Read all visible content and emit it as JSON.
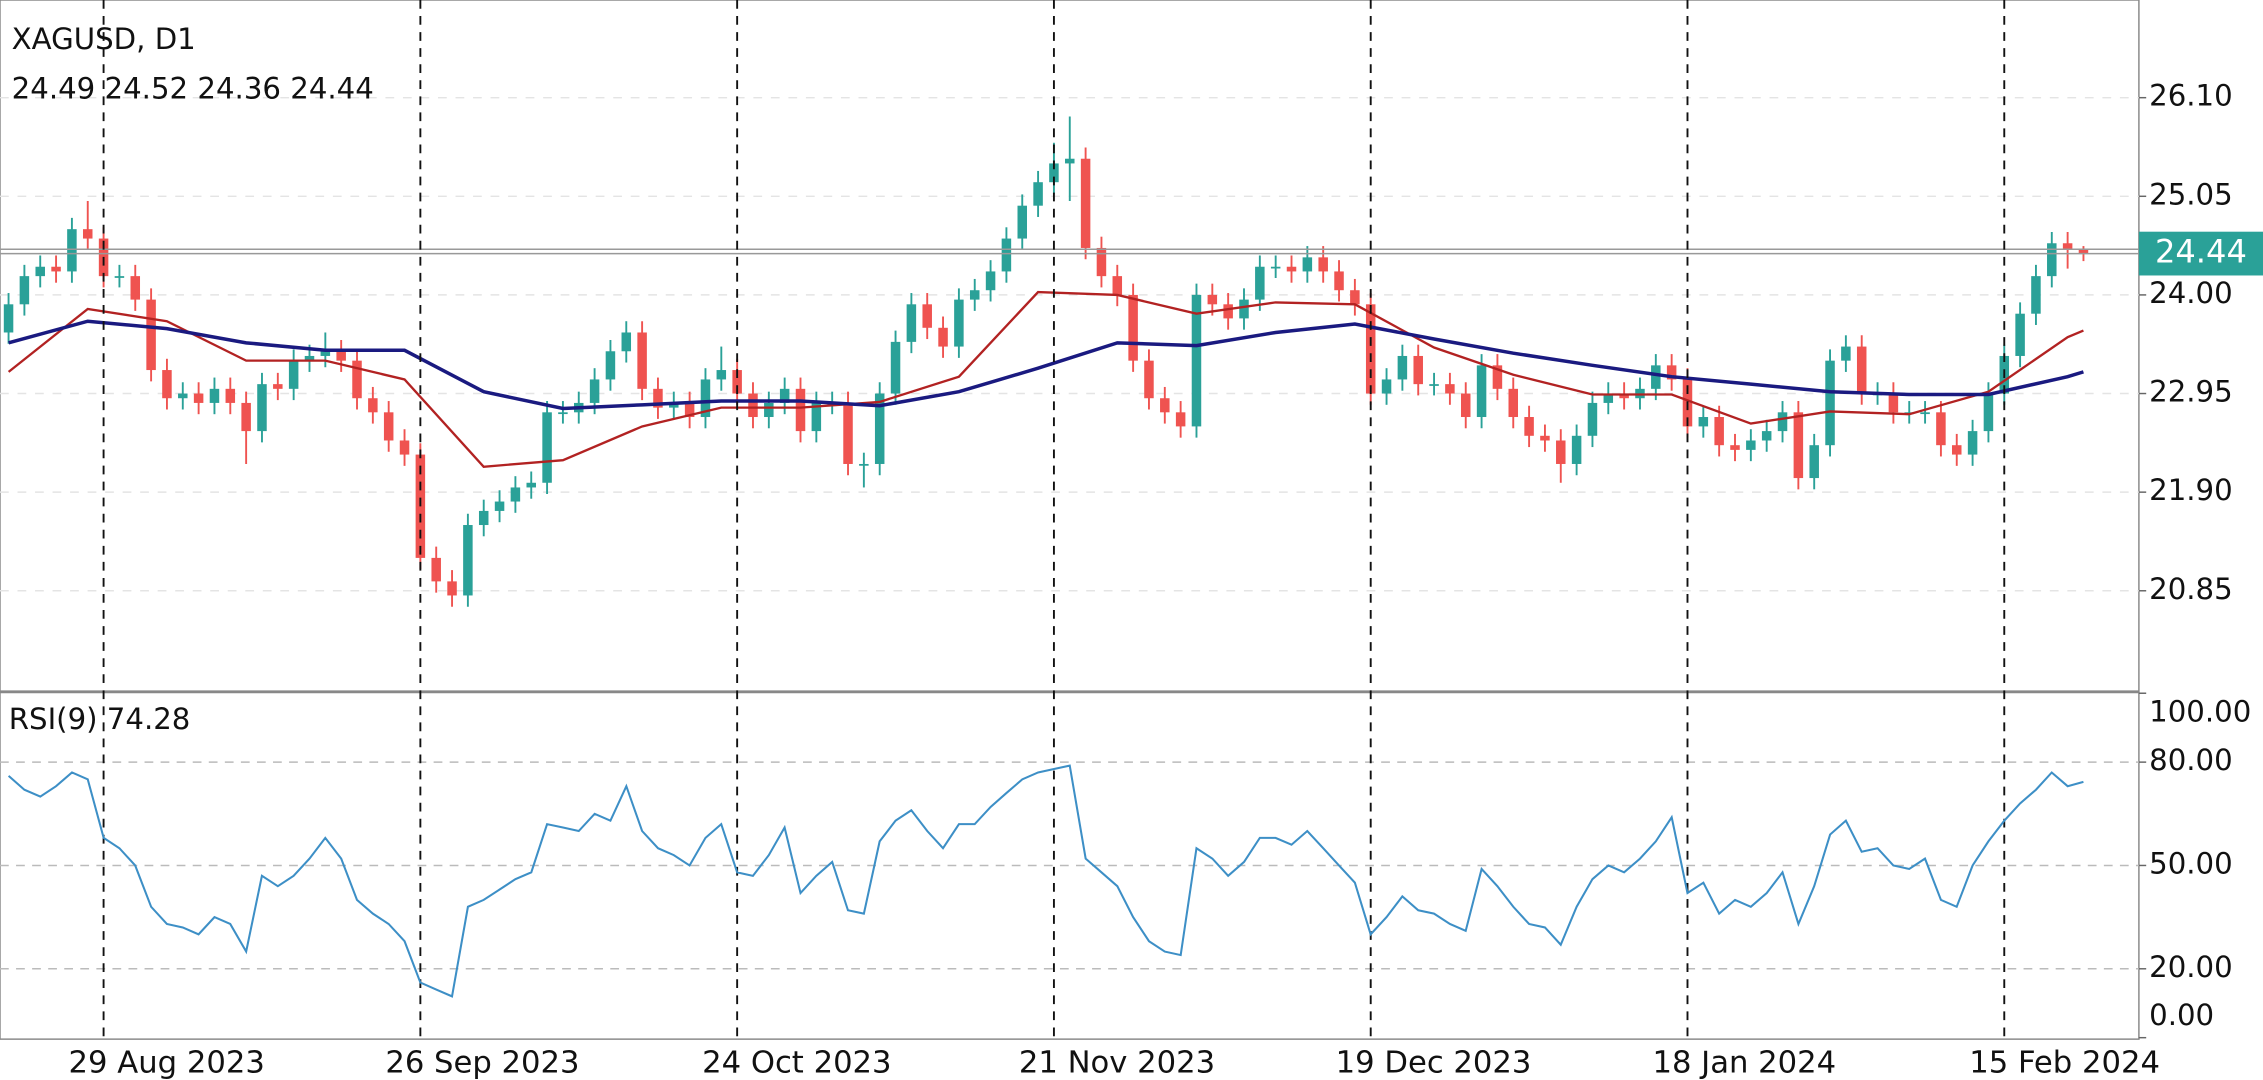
{
  "chart_data": [
    {
      "type": "candlestick",
      "title": "XAGUSD, D1",
      "up_color": "#2aa198",
      "down_color": "#ef5350",
      "xlim": [
        -0.54,
        134.5
      ],
      "ylim": [
        19.79,
        27.14
      ],
      "yticks": [
        20.85,
        {
          "value": 21.9,
          "label": "21.90"
        },
        22.95,
        {
          "value": 24,
          "label": "24.00"
        },
        25.05,
        {
          "value": 26.1,
          "label": "26.10"
        }
      ],
      "grid": true,
      "ohlc": [
        [
          23.6,
          24.02,
          23.48,
          23.9
        ],
        [
          23.9,
          24.32,
          23.78,
          24.2
        ],
        [
          24.2,
          24.42,
          24.08,
          24.3
        ],
        [
          24.3,
          24.42,
          24.13,
          24.25
        ],
        [
          24.25,
          24.82,
          24.13,
          24.7
        ],
        [
          24.7,
          25.0,
          24.48,
          24.6
        ],
        [
          24.6,
          24.72,
          24.08,
          24.2
        ],
        [
          24.2,
          24.32,
          24.08,
          24.2
        ],
        [
          24.2,
          24.32,
          23.83,
          23.95
        ],
        [
          23.95,
          24.07,
          23.08,
          23.2
        ],
        [
          23.2,
          23.32,
          22.78,
          22.9
        ],
        [
          22.9,
          23.07,
          22.78,
          22.95
        ],
        [
          22.95,
          23.07,
          22.73,
          22.85
        ],
        [
          22.85,
          23.12,
          22.73,
          23.0
        ],
        [
          23.0,
          23.12,
          22.73,
          22.85
        ],
        [
          22.85,
          22.97,
          22.2,
          22.55
        ],
        [
          22.55,
          23.17,
          22.43,
          23.05
        ],
        [
          23.05,
          23.17,
          22.88,
          23.0
        ],
        [
          23.0,
          23.42,
          22.88,
          23.3
        ],
        [
          23.3,
          23.47,
          23.18,
          23.35
        ],
        [
          23.35,
          23.6,
          23.23,
          23.4
        ],
        [
          23.4,
          23.52,
          23.18,
          23.3
        ],
        [
          23.3,
          23.42,
          22.78,
          22.9
        ],
        [
          22.9,
          23.02,
          22.63,
          22.75
        ],
        [
          22.75,
          22.87,
          22.33,
          22.45
        ],
        [
          22.45,
          22.57,
          22.18,
          22.3
        ],
        [
          22.3,
          22.42,
          21.08,
          21.2
        ],
        [
          21.2,
          21.32,
          20.83,
          20.95
        ],
        [
          20.95,
          21.07,
          20.68,
          20.8
        ],
        [
          20.8,
          21.67,
          20.68,
          21.55
        ],
        [
          21.55,
          21.82,
          21.43,
          21.7
        ],
        [
          21.7,
          21.92,
          21.58,
          21.8
        ],
        [
          21.8,
          22.07,
          21.68,
          21.95
        ],
        [
          21.95,
          22.12,
          21.83,
          22.0
        ],
        [
          22.0,
          22.87,
          21.88,
          22.75
        ],
        [
          22.75,
          22.87,
          22.63,
          22.75
        ],
        [
          22.75,
          22.97,
          22.63,
          22.85
        ],
        [
          22.85,
          23.22,
          22.73,
          23.1
        ],
        [
          23.1,
          23.52,
          22.98,
          23.4
        ],
        [
          23.4,
          23.72,
          23.28,
          23.6
        ],
        [
          23.6,
          23.72,
          22.88,
          23.0
        ],
        [
          23.0,
          23.12,
          22.68,
          22.8
        ],
        [
          22.8,
          22.97,
          22.68,
          22.85
        ],
        [
          22.85,
          22.97,
          22.58,
          22.7
        ],
        [
          22.7,
          23.22,
          22.58,
          23.1
        ],
        [
          23.1,
          23.45,
          22.98,
          23.2
        ],
        [
          23.2,
          23.32,
          22.83,
          22.95
        ],
        [
          22.95,
          23.07,
          22.58,
          22.7
        ],
        [
          22.7,
          22.97,
          22.58,
          22.85
        ],
        [
          22.85,
          23.12,
          22.73,
          23.0
        ],
        [
          23.0,
          23.12,
          22.43,
          22.55
        ],
        [
          22.55,
          22.97,
          22.43,
          22.85
        ],
        [
          22.85,
          22.97,
          22.73,
          22.85
        ],
        [
          22.85,
          22.97,
          22.08,
          22.2
        ],
        [
          22.2,
          22.32,
          21.95,
          22.2
        ],
        [
          22.2,
          23.07,
          22.08,
          22.95
        ],
        [
          22.95,
          23.62,
          22.83,
          23.5
        ],
        [
          23.5,
          24.02,
          23.38,
          23.9
        ],
        [
          23.9,
          24.02,
          23.53,
          23.65
        ],
        [
          23.65,
          23.77,
          23.33,
          23.45
        ],
        [
          23.45,
          24.07,
          23.33,
          23.95
        ],
        [
          23.95,
          24.17,
          23.83,
          24.05
        ],
        [
          24.05,
          24.37,
          23.93,
          24.25
        ],
        [
          24.25,
          24.72,
          24.13,
          24.6
        ],
        [
          24.6,
          25.07,
          24.48,
          24.95
        ],
        [
          24.95,
          25.32,
          24.83,
          25.2
        ],
        [
          25.2,
          25.62,
          25.08,
          25.4
        ],
        [
          25.4,
          25.9,
          25.0,
          25.45
        ],
        [
          25.45,
          25.57,
          24.38,
          24.5
        ],
        [
          24.5,
          24.62,
          24.08,
          24.2
        ],
        [
          24.2,
          24.32,
          23.88,
          24.0
        ],
        [
          24.0,
          24.12,
          23.18,
          23.3
        ],
        [
          23.3,
          23.42,
          22.78,
          22.9
        ],
        [
          22.9,
          23.02,
          22.63,
          22.75
        ],
        [
          22.75,
          22.87,
          22.48,
          22.6
        ],
        [
          22.6,
          24.12,
          22.48,
          24.0
        ],
        [
          24.0,
          24.12,
          23.78,
          23.9
        ],
        [
          23.9,
          24.02,
          23.63,
          23.75
        ],
        [
          23.75,
          24.07,
          23.63,
          23.95
        ],
        [
          23.95,
          24.42,
          23.83,
          24.3
        ],
        [
          24.3,
          24.42,
          24.18,
          24.3
        ],
        [
          24.3,
          24.42,
          24.13,
          24.25
        ],
        [
          24.25,
          24.52,
          24.13,
          24.4
        ],
        [
          24.4,
          24.52,
          24.13,
          24.25
        ],
        [
          24.25,
          24.37,
          23.93,
          24.05
        ],
        [
          24.05,
          24.17,
          23.78,
          23.9
        ],
        [
          23.9,
          24.02,
          22.83,
          22.95
        ],
        [
          22.95,
          23.22,
          22.83,
          23.1
        ],
        [
          23.1,
          23.47,
          22.98,
          23.35
        ],
        [
          23.35,
          23.47,
          22.93,
          23.05
        ],
        [
          23.05,
          23.17,
          22.93,
          23.05
        ],
        [
          23.05,
          23.17,
          22.83,
          22.95
        ],
        [
          22.95,
          23.07,
          22.58,
          22.7
        ],
        [
          22.7,
          23.37,
          22.58,
          23.25
        ],
        [
          23.25,
          23.37,
          22.88,
          23.0
        ],
        [
          23.0,
          23.12,
          22.58,
          22.7
        ],
        [
          22.7,
          22.82,
          22.38,
          22.5
        ],
        [
          22.5,
          22.62,
          22.33,
          22.45
        ],
        [
          22.45,
          22.57,
          22.0,
          22.2
        ],
        [
          22.2,
          22.62,
          22.08,
          22.5
        ],
        [
          22.5,
          22.97,
          22.38,
          22.85
        ],
        [
          22.85,
          23.07,
          22.73,
          22.95
        ],
        [
          22.95,
          23.07,
          22.78,
          22.9
        ],
        [
          22.9,
          23.12,
          22.78,
          23.0
        ],
        [
          23.0,
          23.37,
          22.88,
          23.25
        ],
        [
          23.25,
          23.37,
          22.98,
          23.1
        ],
        [
          23.1,
          23.22,
          22.48,
          22.6
        ],
        [
          22.6,
          22.82,
          22.48,
          22.7
        ],
        [
          22.7,
          22.82,
          22.28,
          22.4
        ],
        [
          22.4,
          22.52,
          22.23,
          22.35
        ],
        [
          22.35,
          22.57,
          22.23,
          22.45
        ],
        [
          22.45,
          22.67,
          22.33,
          22.55
        ],
        [
          22.55,
          22.87,
          22.43,
          22.75
        ],
        [
          22.75,
          22.87,
          21.93,
          22.05
        ],
        [
          22.05,
          22.52,
          21.93,
          22.4
        ],
        [
          22.4,
          23.42,
          22.28,
          23.3
        ],
        [
          23.3,
          23.57,
          23.18,
          23.45
        ],
        [
          23.45,
          23.57,
          22.83,
          22.95
        ],
        [
          22.95,
          23.07,
          22.83,
          22.95
        ],
        [
          22.95,
          23.07,
          22.63,
          22.75
        ],
        [
          22.75,
          22.87,
          22.63,
          22.75
        ],
        [
          22.75,
          22.87,
          22.63,
          22.75
        ],
        [
          22.75,
          22.87,
          22.28,
          22.4
        ],
        [
          22.4,
          22.52,
          22.18,
          22.3
        ],
        [
          22.3,
          22.67,
          22.18,
          22.55
        ],
        [
          22.55,
          23.07,
          22.43,
          22.95
        ],
        [
          22.95,
          23.47,
          22.83,
          23.35
        ],
        [
          23.35,
          23.92,
          23.23,
          23.8
        ],
        [
          23.8,
          24.32,
          23.68,
          24.2
        ],
        [
          24.2,
          24.67,
          24.08,
          24.55
        ],
        [
          24.55,
          24.67,
          24.28,
          24.49
        ],
        [
          24.49,
          24.52,
          24.36,
          24.44
        ]
      ],
      "series": [
        {
          "color": "#b22222",
          "x": [
            0,
            5,
            10,
            15,
            20,
            25,
            30,
            35,
            40,
            45,
            50,
            55,
            60,
            65,
            70,
            75,
            80,
            85,
            90,
            95,
            100,
            105,
            110,
            115,
            120,
            125,
            130,
            131
          ],
          "values": [
            23.18,
            23.85,
            23.72,
            23.3,
            23.3,
            23.1,
            22.17,
            22.24,
            22.6,
            22.8,
            22.8,
            22.86,
            23.13,
            24.03,
            24.0,
            23.8,
            23.92,
            23.9,
            23.44,
            23.15,
            22.94,
            22.94,
            22.63,
            22.76,
            22.73,
            22.97,
            23.55,
            23.62
          ]
        },
        {
          "color": "#1a1a80",
          "x": [
            0,
            5,
            10,
            15,
            20,
            25,
            30,
            35,
            40,
            45,
            50,
            55,
            60,
            65,
            70,
            75,
            80,
            85,
            90,
            95,
            100,
            105,
            110,
            115,
            120,
            125,
            130,
            131
          ],
          "values": [
            23.49,
            23.72,
            23.64,
            23.49,
            23.41,
            23.41,
            22.97,
            22.79,
            22.83,
            22.87,
            22.87,
            22.82,
            22.97,
            23.22,
            23.49,
            23.46,
            23.6,
            23.69,
            23.53,
            23.38,
            23.25,
            23.13,
            23.05,
            22.97,
            22.94,
            22.94,
            23.13,
            23.18
          ]
        }
      ]
    },
    {
      "type": "line",
      "title": "RSI(9) 74.28",
      "xlim": [
        -0.54,
        134.5
      ],
      "ylim": [
        0,
        100
      ],
      "yticks": [
        {
          "value": 100,
          "label": "100.00"
        },
        {
          "value": 80,
          "label": "80.00"
        },
        {
          "value": 50,
          "label": "50.00"
        },
        {
          "value": 20,
          "label": "20.00"
        },
        {
          "value": 0,
          "label": "0.00"
        }
      ],
      "levels": [
        80,
        50,
        20
      ],
      "xticks": [
        {
          "value": 6,
          "label": "29 Aug 2023"
        },
        {
          "value": 26,
          "label": "26 Sep 2023"
        },
        {
          "value": 46,
          "label": "24 Oct 2023"
        },
        {
          "value": 66,
          "label": "21 Nov 2023"
        },
        {
          "value": 86,
          "label": "19 Dec 2023"
        },
        {
          "value": 106,
          "label": "18 Jan 2024"
        },
        {
          "value": 126,
          "label": "15 Feb 2024"
        }
      ],
      "series": [
        {
          "color": "#3d8fc6",
          "values": [
            76,
            72,
            70,
            73,
            77,
            75,
            58,
            55,
            50,
            38,
            33,
            32,
            30,
            35,
            33,
            25,
            47,
            44,
            47,
            52,
            58,
            52,
            40,
            36,
            33,
            28,
            16,
            14,
            12,
            38,
            40,
            43,
            46,
            48,
            62,
            61,
            60,
            65,
            63,
            73,
            60,
            55,
            53,
            50,
            58,
            62,
            48,
            47,
            53,
            61,
            42,
            47,
            51,
            37,
            36,
            57,
            63,
            66,
            60,
            55,
            62,
            62,
            67,
            71,
            75,
            77,
            78,
            79,
            52,
            48,
            44,
            35,
            28,
            25,
            24,
            55,
            52,
            47,
            51,
            58,
            58,
            56,
            60,
            55,
            50,
            45,
            30,
            35,
            41,
            37,
            36,
            33,
            31,
            49,
            44,
            38,
            33,
            32,
            27,
            38,
            46,
            50,
            48,
            52,
            57,
            64,
            42,
            45,
            36,
            40,
            38,
            42,
            48,
            33,
            44,
            59,
            63,
            54,
            55,
            50,
            49,
            52,
            40,
            38,
            50,
            57,
            63,
            68,
            72,
            77,
            73,
            74.28
          ]
        }
      ]
    }
  ]
}
